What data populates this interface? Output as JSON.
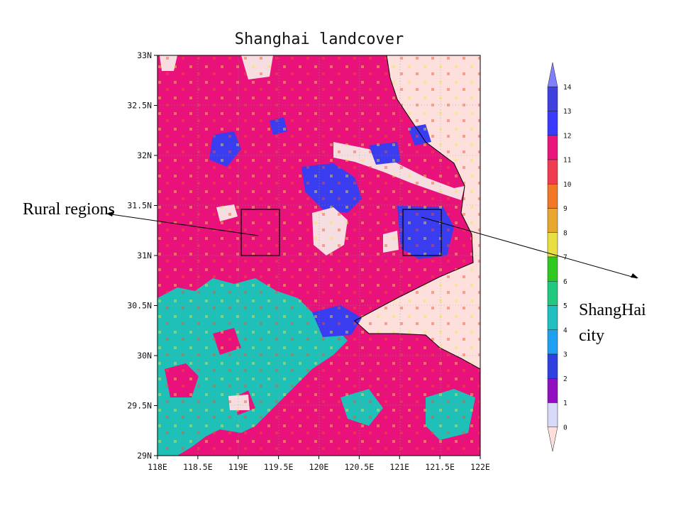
{
  "title": "Shanghai landcover",
  "x_ticks": [
    "118E",
    "118.5E",
    "119E",
    "119.5E",
    "120E",
    "120.5E",
    "121E",
    "121.5E",
    "122E"
  ],
  "y_ticks": [
    "33N",
    "32.5N",
    "32N",
    "31.5N",
    "31N",
    "30.5N",
    "30N",
    "29.5N",
    "29N"
  ],
  "colorbar": {
    "labels": [
      "14",
      "13",
      "12",
      "11",
      "10",
      "9",
      "8",
      "7",
      "6",
      "5",
      "4",
      "3",
      "2",
      "1",
      "0"
    ],
    "colors": [
      "#8080ff",
      "#4040e0",
      "#3a3aff",
      "#e8147c",
      "#f03c50",
      "#f07828",
      "#e8a830",
      "#e8e040",
      "#30c820",
      "#20c880",
      "#20c0c0",
      "#1ea0f0",
      "#3040e0",
      "#9010c0",
      "#d8d8f8",
      "#fde0dc"
    ]
  },
  "annotations": {
    "rural": "Rural regions",
    "city_line1": "ShangHai",
    "city_line2": "city"
  },
  "map_colors": {
    "water": "#fde0dc",
    "forest": "#1fc0b8",
    "crop": "#e8127a",
    "urban": "#3a3cf0",
    "barren": "#f6dde0"
  }
}
